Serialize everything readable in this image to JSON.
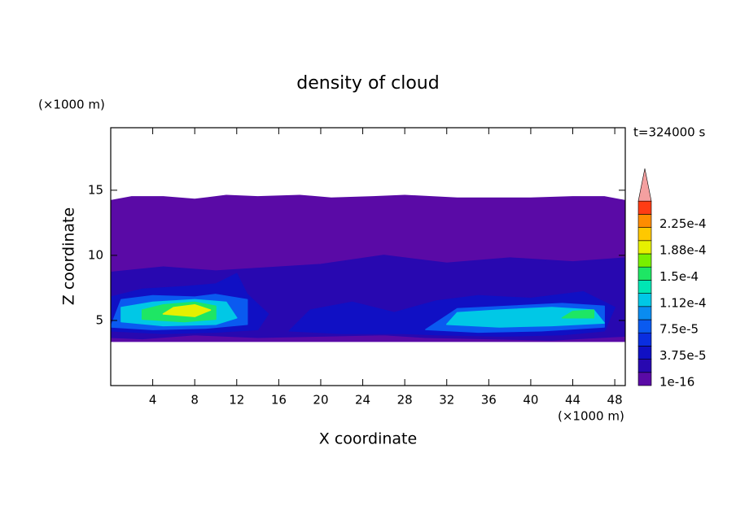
{
  "chart_data": {
    "type": "contour",
    "title": "density of cloud",
    "x_label": "X coordinate",
    "y_label": "Z coordinate",
    "x_unit": "(×1000 m)",
    "y_unit": "(×1000 m)",
    "time_label": "t=324000 s",
    "xlim": [
      0,
      49
    ],
    "ylim": [
      0,
      19.8
    ],
    "xticks": [
      4,
      8,
      12,
      16,
      20,
      24,
      28,
      32,
      36,
      40,
      44,
      48
    ],
    "yticks": [
      5,
      10,
      15
    ],
    "levels": [
      1e-16,
      1.875e-05,
      3.75e-05,
      5.625e-05,
      7.5e-05,
      9.375e-05,
      0.0001125,
      0.00013125,
      0.00015,
      0.00016875,
      0.0001875,
      0.00020625,
      0.000225,
      0.00024375,
      0.0002625
    ],
    "colors": [
      "#5a0aa6",
      "#2808b0",
      "#1010c4",
      "#0a2ee0",
      "#0a5af0",
      "#0a8cf0",
      "#00c8e6",
      "#00e6b4",
      "#1ee664",
      "#78f000",
      "#e6f000",
      "#ffc800",
      "#ff8c00",
      "#ff3c14"
    ],
    "over_color": "#f4a0a0",
    "colorbar_ticks": [
      1e-16,
      {
        "value": 3.75e-05,
        "label": "3.75e-5"
      },
      {
        "value": 7.5e-05,
        "label": "7.5e-5"
      },
      {
        "value": 0.0001125,
        "label": "1.12e-4"
      },
      {
        "value": 0.00015,
        "label": "1.5e-4"
      },
      {
        "value": 0.0001875,
        "label": "1.88e-4"
      },
      {
        "value": 0.000225,
        "label": "2.25e-4"
      }
    ],
    "regions": [
      {
        "level": 0,
        "x": [
          0,
          49,
          49,
          47,
          44,
          40,
          36,
          33,
          28,
          25,
          21,
          18,
          14,
          11,
          8,
          5,
          2,
          0
        ],
        "z": [
          3.4,
          3.4,
          14.2,
          14.5,
          14.5,
          14.4,
          14.4,
          14.4,
          14.6,
          14.5,
          14.4,
          14.6,
          14.5,
          14.6,
          14.3,
          14.5,
          14.5,
          14.2
        ]
      },
      {
        "level": 1,
        "x": [
          0,
          3,
          8,
          14,
          20,
          26,
          30,
          36,
          42,
          49,
          49,
          44,
          38,
          32,
          26,
          20,
          14,
          10,
          5,
          0
        ],
        "z": [
          3.7,
          3.6,
          3.9,
          3.7,
          3.8,
          3.9,
          3.7,
          3.6,
          3.5,
          3.8,
          9.8,
          9.5,
          9.8,
          9.4,
          10.0,
          9.3,
          9.0,
          8.8,
          9.1,
          8.7
        ]
      },
      {
        "level": 2,
        "x": [
          0,
          5,
          10,
          14,
          15,
          13,
          12,
          10,
          7,
          3,
          0
        ],
        "z": [
          4.2,
          4.0,
          4.1,
          4.3,
          5.5,
          7.0,
          8.6,
          7.8,
          7.6,
          7.4,
          6.8
        ]
      },
      {
        "level": 2,
        "x": [
          17,
          22,
          28,
          31,
          37,
          43,
          47,
          48,
          45,
          40,
          35,
          31,
          27,
          23,
          19
        ],
        "z": [
          4.2,
          4.0,
          4.0,
          3.9,
          3.8,
          3.9,
          4.2,
          6.0,
          7.2,
          6.7,
          6.9,
          6.5,
          5.6,
          6.4,
          5.8
        ]
      },
      {
        "level": 4,
        "x": [
          0,
          4,
          9,
          13,
          13,
          10,
          8,
          4,
          1
        ],
        "z": [
          4.5,
          4.3,
          4.4,
          4.7,
          6.6,
          7.0,
          6.8,
          6.9,
          6.6
        ]
      },
      {
        "level": 4,
        "x": [
          30,
          35,
          41,
          47,
          47,
          43,
          38,
          33
        ],
        "z": [
          4.3,
          4.1,
          4.2,
          4.5,
          6.1,
          6.3,
          6.1,
          5.9
        ]
      },
      {
        "level": 6,
        "x": [
          1,
          5,
          10,
          12,
          11,
          8,
          4,
          1
        ],
        "z": [
          4.9,
          4.6,
          4.7,
          5.2,
          6.4,
          6.6,
          6.4,
          6.0
        ]
      },
      {
        "level": 6,
        "x": [
          32,
          37,
          42,
          47,
          46,
          42,
          37,
          33
        ],
        "z": [
          4.7,
          4.5,
          4.6,
          4.8,
          5.8,
          6.0,
          5.8,
          5.6
        ]
      },
      {
        "level": 8,
        "x": [
          3,
          7,
          10,
          10,
          8,
          5,
          3
        ],
        "z": [
          5.1,
          4.9,
          5.1,
          6.1,
          6.4,
          6.2,
          5.8
        ]
      },
      {
        "level": 8,
        "x": [
          43,
          46,
          46,
          44
        ],
        "z": [
          5.2,
          5.2,
          5.8,
          5.7
        ]
      },
      {
        "level": 10,
        "x": [
          5,
          8,
          9.5,
          8,
          6
        ],
        "z": [
          5.5,
          5.3,
          5.8,
          6.2,
          6.0
        ]
      }
    ]
  }
}
